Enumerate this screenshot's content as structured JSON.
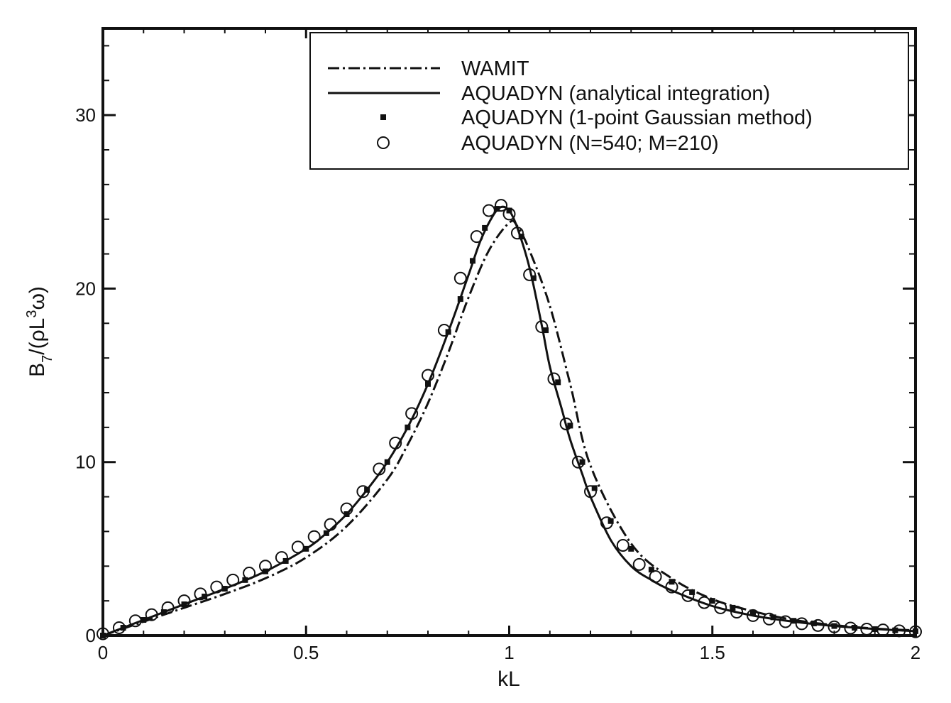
{
  "chart_data": {
    "type": "line",
    "xlabel": "kL",
    "ylabel": {
      "base": "B",
      "sub": "7",
      "mid": "/(ρL",
      "sup": "3",
      "end": "ω)"
    },
    "xlim": [
      0,
      2
    ],
    "ylim": [
      0,
      35
    ],
    "x_ticks": [
      0,
      0.5,
      1,
      1.5,
      2
    ],
    "x_tick_labels": [
      "0",
      "0.5",
      "1",
      "1.5",
      "2"
    ],
    "y_ticks": [
      0,
      10,
      20,
      30
    ],
    "y_tick_labels": [
      "0",
      "10",
      "20",
      "30"
    ],
    "grid": false,
    "legend_position": "top-right",
    "series": [
      {
        "name": "WAMIT",
        "style": "dash-dot",
        "x": [
          0,
          0.1,
          0.2,
          0.3,
          0.4,
          0.5,
          0.6,
          0.7,
          0.75,
          0.8,
          0.85,
          0.9,
          0.95,
          1.0,
          1.02,
          1.05,
          1.1,
          1.15,
          1.2,
          1.3,
          1.4,
          1.5,
          1.6,
          1.7,
          1.8,
          1.9,
          2.0
        ],
        "y": [
          0,
          0.8,
          1.6,
          2.4,
          3.3,
          4.5,
          6.3,
          9.0,
          11.0,
          13.4,
          16.3,
          19.5,
          22.2,
          23.8,
          23.6,
          22.2,
          19.0,
          14.5,
          9.8,
          5.3,
          3.3,
          2.1,
          1.4,
          0.9,
          0.6,
          0.4,
          0.3
        ]
      },
      {
        "name": "AQUADYN (analytical integration)",
        "style": "solid",
        "x": [
          0,
          0.1,
          0.2,
          0.3,
          0.4,
          0.5,
          0.55,
          0.6,
          0.65,
          0.7,
          0.75,
          0.8,
          0.85,
          0.9,
          0.93,
          0.96,
          0.98,
          1.0,
          1.02,
          1.05,
          1.08,
          1.1,
          1.13,
          1.15,
          1.18,
          1.2,
          1.25,
          1.3,
          1.35,
          1.4,
          1.5,
          1.6,
          1.7,
          1.8,
          1.9,
          2.0
        ],
        "y": [
          0,
          0.9,
          1.8,
          2.7,
          3.7,
          5.0,
          5.9,
          7.0,
          8.4,
          10.0,
          12.0,
          14.5,
          17.5,
          20.8,
          22.8,
          24.2,
          24.7,
          24.5,
          23.5,
          21.2,
          17.9,
          15.5,
          13.0,
          11.3,
          9.3,
          8.0,
          5.5,
          4.0,
          3.2,
          2.6,
          1.7,
          1.15,
          0.8,
          0.55,
          0.38,
          0.25
        ]
      },
      {
        "name": "AQUADYN (1-point Gaussian method)",
        "style": "square-markers",
        "x": [
          0,
          0.05,
          0.1,
          0.15,
          0.2,
          0.25,
          0.3,
          0.35,
          0.4,
          0.45,
          0.5,
          0.55,
          0.6,
          0.65,
          0.7,
          0.75,
          0.8,
          0.85,
          0.88,
          0.91,
          0.94,
          0.97,
          1.0,
          1.03,
          1.06,
          1.09,
          1.12,
          1.15,
          1.18,
          1.21,
          1.25,
          1.3,
          1.35,
          1.4,
          1.45,
          1.5,
          1.55,
          1.6,
          1.65,
          1.7,
          1.75,
          1.8,
          1.85,
          1.9,
          1.95,
          2.0
        ],
        "y": [
          0,
          0.45,
          0.9,
          1.35,
          1.8,
          2.25,
          2.7,
          3.2,
          3.7,
          4.3,
          5.0,
          5.9,
          7.0,
          8.4,
          10.0,
          12.0,
          14.5,
          17.5,
          19.4,
          21.6,
          23.5,
          24.6,
          24.5,
          23.0,
          20.6,
          17.6,
          14.6,
          12.1,
          10.0,
          8.5,
          6.6,
          5.0,
          3.8,
          3.1,
          2.5,
          2.0,
          1.6,
          1.3,
          1.05,
          0.85,
          0.7,
          0.55,
          0.45,
          0.37,
          0.3,
          0.25
        ]
      },
      {
        "name": "AQUADYN (N=540; M=210)",
        "style": "circle-markers",
        "x": [
          0,
          0.04,
          0.08,
          0.12,
          0.16,
          0.2,
          0.24,
          0.28,
          0.32,
          0.36,
          0.4,
          0.44,
          0.48,
          0.52,
          0.56,
          0.6,
          0.64,
          0.68,
          0.72,
          0.76,
          0.8,
          0.84,
          0.88,
          0.92,
          0.95,
          0.98,
          1.0,
          1.02,
          1.05,
          1.08,
          1.11,
          1.14,
          1.17,
          1.2,
          1.24,
          1.28,
          1.32,
          1.36,
          1.4,
          1.44,
          1.48,
          1.52,
          1.56,
          1.6,
          1.64,
          1.68,
          1.72,
          1.76,
          1.8,
          1.84,
          1.88,
          1.92,
          1.96,
          2.0
        ],
        "y": [
          0.1,
          0.45,
          0.85,
          1.2,
          1.6,
          2.0,
          2.4,
          2.8,
          3.2,
          3.6,
          4.0,
          4.5,
          5.1,
          5.7,
          6.4,
          7.3,
          8.3,
          9.6,
          11.1,
          12.8,
          15.0,
          17.6,
          20.6,
          23.0,
          24.5,
          24.8,
          24.3,
          23.2,
          20.8,
          17.8,
          14.8,
          12.2,
          10.0,
          8.3,
          6.5,
          5.2,
          4.1,
          3.4,
          2.8,
          2.3,
          1.9,
          1.6,
          1.35,
          1.15,
          0.95,
          0.8,
          0.68,
          0.58,
          0.5,
          0.43,
          0.37,
          0.32,
          0.27,
          0.22
        ]
      }
    ]
  }
}
